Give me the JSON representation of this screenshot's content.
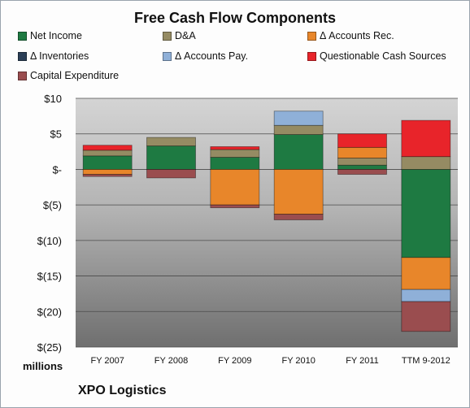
{
  "chart_data": {
    "type": "bar",
    "stacked": true,
    "title": "Free Cash Flow Components",
    "categories": [
      "FY 2007",
      "FY 2008",
      "FY 2009",
      "FY 2010",
      "FY 2011",
      "TTM 9-2012"
    ],
    "series": [
      {
        "name": "Net Income",
        "color": "#1e7a42",
        "values": [
          1.9,
          3.3,
          1.7,
          4.9,
          0.6,
          -12.4
        ]
      },
      {
        "name": "D&A",
        "color": "#958b63",
        "values": [
          0.8,
          1.2,
          1.1,
          1.3,
          1.0,
          1.8
        ]
      },
      {
        "name": "Δ Accounts Rec.",
        "color": "#e8862a",
        "values": [
          -0.7,
          0.0,
          -5.0,
          -6.3,
          1.5,
          -4.5
        ]
      },
      {
        "name": "Δ Inventories",
        "color": "#2b3f57",
        "values": [
          0,
          0,
          0,
          0,
          0,
          0
        ]
      },
      {
        "name": "Δ Accounts Pay.",
        "color": "#8fb0d8",
        "values": [
          0.0,
          0.0,
          0.0,
          2.0,
          0.0,
          -1.7
        ]
      },
      {
        "name": "Questionable Cash Sources",
        "color": "#e8242a",
        "values": [
          0.7,
          0.0,
          0.4,
          0.0,
          1.9,
          5.1
        ]
      },
      {
        "name": "Capital Expenditure",
        "color": "#9a4d4f",
        "values": [
          -0.3,
          -1.2,
          -0.4,
          -0.8,
          -0.7,
          -4.2
        ]
      }
    ],
    "ylim": [
      -25,
      10
    ],
    "yticks": [
      10,
      5,
      0,
      -5,
      -10,
      -15,
      -20,
      -25
    ],
    "ytick_labels": [
      "$10",
      "$5",
      "$-",
      "$(5)",
      "$(10)",
      "$(15)",
      "$(20)",
      "$(25)"
    ],
    "grid": true,
    "legend": "top",
    "units_label": "millions",
    "company": "XPO Logistics"
  }
}
